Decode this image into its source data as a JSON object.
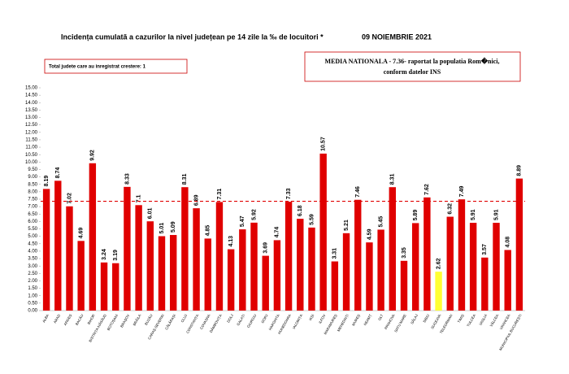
{
  "chart_data": {
    "type": "bar",
    "title": "Incidența cumulată a cazurilor la nivel județean pe 14 zile la ‰ de locuitori *",
    "subtitle": "09 NOIEMBRIE 2021",
    "annotations": [
      "Total judete care au inregistrat crestere: 1",
      "MEDIA NATIONALA - 7.36-  raportat la populatia Rom�nici,",
      "conform datelor INS"
    ],
    "reference_line": 7.36,
    "categories": [
      "ALBA",
      "ARAD",
      "ARGEȘ",
      "BACĂU",
      "BIHOR",
      "BISTRIȚA-NĂSĂUD",
      "BOTOȘANI",
      "BRAȘOV",
      "BRĂILA",
      "BUZĂU",
      "CARAȘ-SEVERIN",
      "CĂLĂRAȘI",
      "CLUJ",
      "CONSTANȚA",
      "COVASNA",
      "DÂMBOVIȚA",
      "DOLJ",
      "GALAȚI",
      "GIURGIU",
      "GORJ",
      "HARGHITA",
      "HUNEDOARA",
      "IALOMIȚA",
      "IAȘI",
      "ILFOV",
      "MARAMUREȘ",
      "MEHEDINȚI",
      "MUREȘ",
      "NEAMȚ",
      "OLT",
      "PRAHOVA",
      "SATU MARE",
      "SĂLAJ",
      "SIBIU",
      "SUCEAVA",
      "TELEORMAN",
      "TIMIȘ",
      "TULCEA",
      "VASLUI",
      "VÂLCEA",
      "VRANCEA",
      "MUNICIPIUL BUCUREȘTI"
    ],
    "values": [
      8.19,
      8.74,
      7.02,
      4.69,
      9.92,
      3.24,
      3.19,
      8.33,
      7.1,
      6.01,
      5.01,
      5.09,
      8.31,
      6.89,
      4.85,
      7.31,
      4.13,
      5.47,
      5.92,
      3.69,
      4.74,
      7.33,
      6.18,
      5.59,
      10.57,
      3.31,
      5.21,
      7.46,
      4.59,
      5.45,
      8.31,
      3.35,
      5.89,
      7.62,
      2.62,
      6.32,
      7.49,
      5.91,
      3.57,
      5.91,
      4.08,
      8.89
    ],
    "colors": [
      "#e00000",
      "#e00000",
      "#e00000",
      "#e00000",
      "#e00000",
      "#e00000",
      "#e00000",
      "#e00000",
      "#e00000",
      "#e00000",
      "#e00000",
      "#e00000",
      "#e00000",
      "#e00000",
      "#e00000",
      "#e00000",
      "#e00000",
      "#e00000",
      "#e00000",
      "#e00000",
      "#e00000",
      "#e00000",
      "#e00000",
      "#e00000",
      "#e00000",
      "#e00000",
      "#e00000",
      "#e00000",
      "#e00000",
      "#e00000",
      "#e00000",
      "#e00000",
      "#e00000",
      "#e00000",
      "#ffff33",
      "#e00000",
      "#e00000",
      "#e00000",
      "#e00000",
      "#e00000",
      "#e00000",
      "#e00000"
    ],
    "ylim": [
      0,
      15
    ],
    "yticks": [
      {
        "value": 0,
        "label": "0.00"
      },
      {
        "value": 0.5,
        "label": "0.50"
      },
      {
        "value": 1,
        "label": "1.00"
      },
      {
        "value": 1.5,
        "label": "1.50"
      },
      {
        "value": 2,
        "label": "2.00"
      },
      {
        "value": 2.5,
        "label": "2.50"
      },
      {
        "value": 3,
        "label": "3.00"
      },
      {
        "value": 3.5,
        "label": "3.50"
      },
      {
        "value": 4,
        "label": "4.00"
      },
      {
        "value": 4.5,
        "label": "4.50"
      },
      {
        "value": 5,
        "label": "5.00"
      },
      {
        "value": 5.5,
        "label": "5.50"
      },
      {
        "value": 6,
        "label": "6.00"
      },
      {
        "value": 6.5,
        "label": "6.50"
      },
      {
        "value": 7,
        "label": "7.00"
      },
      {
        "value": 7.5,
        "label": "7.50"
      },
      {
        "value": 8,
        "label": "8.00"
      },
      {
        "value": 8.5,
        "label": "8.50"
      },
      {
        "value": 9,
        "label": "9.00"
      },
      {
        "value": 9.5,
        "label": "9.50"
      },
      {
        "value": 10,
        "label": "10.00"
      },
      {
        "value": 10.5,
        "label": "10.50"
      },
      {
        "value": 11,
        "label": "11.00"
      },
      {
        "value": 11.5,
        "label": "11.50"
      },
      {
        "value": 12,
        "label": "12.00"
      },
      {
        "value": 12.5,
        "label": "12.50"
      },
      {
        "value": 13,
        "label": "13.00"
      },
      {
        "value": 13.5,
        "label": "13.50"
      },
      {
        "value": 14,
        "label": "14.00"
      },
      {
        "value": 14.5,
        "label": "14.50"
      },
      {
        "value": 15,
        "label": "15.00"
      }
    ],
    "grid": false
  }
}
